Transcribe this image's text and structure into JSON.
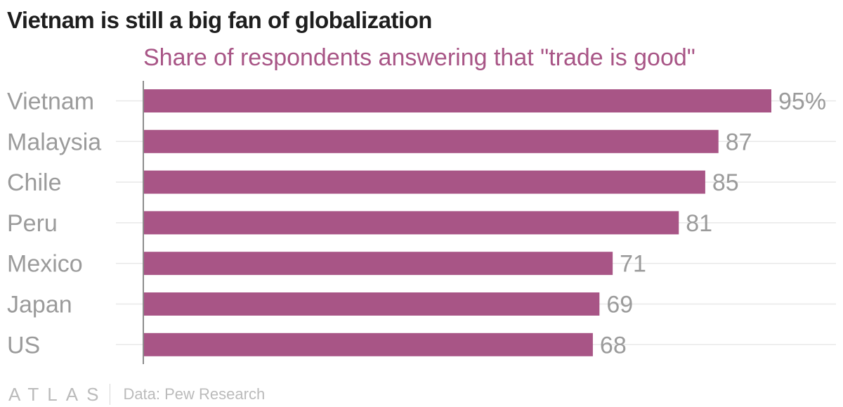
{
  "title": "Vietnam is still a big fan of globalization",
  "footer": {
    "brand": "ATLAS",
    "source": "Data: Pew Research"
  },
  "colors": {
    "bar": "#a85586",
    "subtitle": "#a85586",
    "label": "#9b9b9b",
    "grid": "#e8e8e8",
    "axis": "#8c8c8c"
  },
  "chart_data": {
    "type": "bar",
    "orientation": "horizontal",
    "title": "Vietnam is still a big fan of globalization",
    "subtitle": "Share of respondents answering that \"trade is good\"",
    "categories": [
      "Vietnam",
      "Malaysia",
      "Chile",
      "Peru",
      "Mexico",
      "Japan",
      "US"
    ],
    "values": [
      95,
      87,
      85,
      81,
      71,
      69,
      68
    ],
    "value_labels": [
      "95%",
      "87",
      "85",
      "81",
      "71",
      "69",
      "68"
    ],
    "xlim": [
      0,
      100
    ],
    "xlabel": "",
    "ylabel": "",
    "grid": true,
    "source": "Data: Pew Research"
  }
}
